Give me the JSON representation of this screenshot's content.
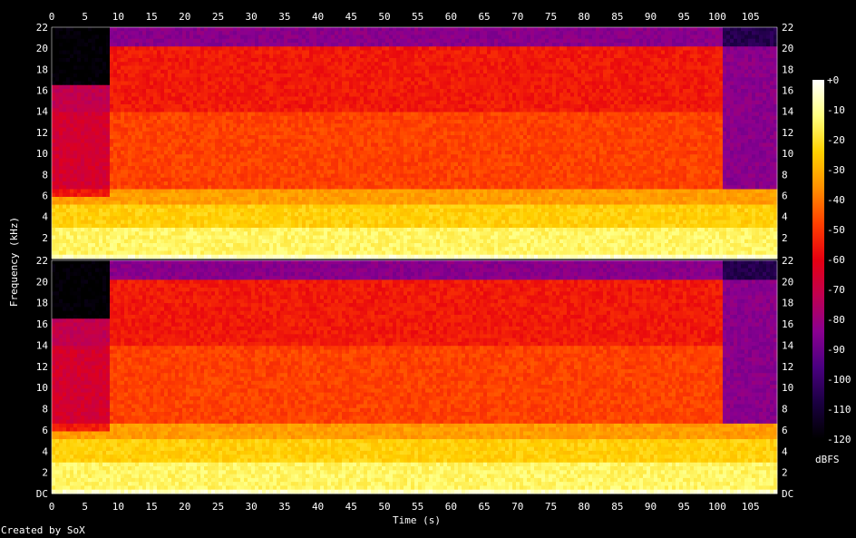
{
  "chart_data": {
    "type": "heatmap",
    "title": "",
    "xlabel": "Time (s)",
    "ylabel": "Frequency (kHz)",
    "xlim": [
      0,
      109
    ],
    "ylim": [
      0,
      22
    ],
    "x_ticks": [
      "0",
      "5",
      "10",
      "15",
      "20",
      "25",
      "30",
      "35",
      "40",
      "45",
      "50",
      "55",
      "60",
      "65",
      "70",
      "75",
      "80",
      "85",
      "90",
      "95",
      "100",
      "105"
    ],
    "y_ticks_top": [
      "2",
      "4",
      "6",
      "8",
      "10",
      "12",
      "14",
      "16",
      "18",
      "20",
      "22"
    ],
    "y_ticks_bottom": [
      "DC",
      "2",
      "4",
      "6",
      "8",
      "10",
      "12",
      "14",
      "16",
      "18",
      "20",
      "22"
    ],
    "channels": 2,
    "colorbar": {
      "label": "dBFS",
      "ticks": [
        "+0",
        "-10",
        "-20",
        "-30",
        "-40",
        "-50",
        "-60",
        "-70",
        "-80",
        "-90",
        "-100",
        "-110",
        "-120"
      ],
      "range": [
        -120,
        0
      ]
    },
    "annotations": {
      "credit": "Created by SoX"
    },
    "colors": {
      "background": "#000000",
      "stops": [
        "#000000",
        "#1a0040",
        "#4a0080",
        "#8a0090",
        "#c00050",
        "#e60010",
        "#ff4000",
        "#ff9000",
        "#ffd000",
        "#ffff80",
        "#ffffff"
      ]
    }
  }
}
